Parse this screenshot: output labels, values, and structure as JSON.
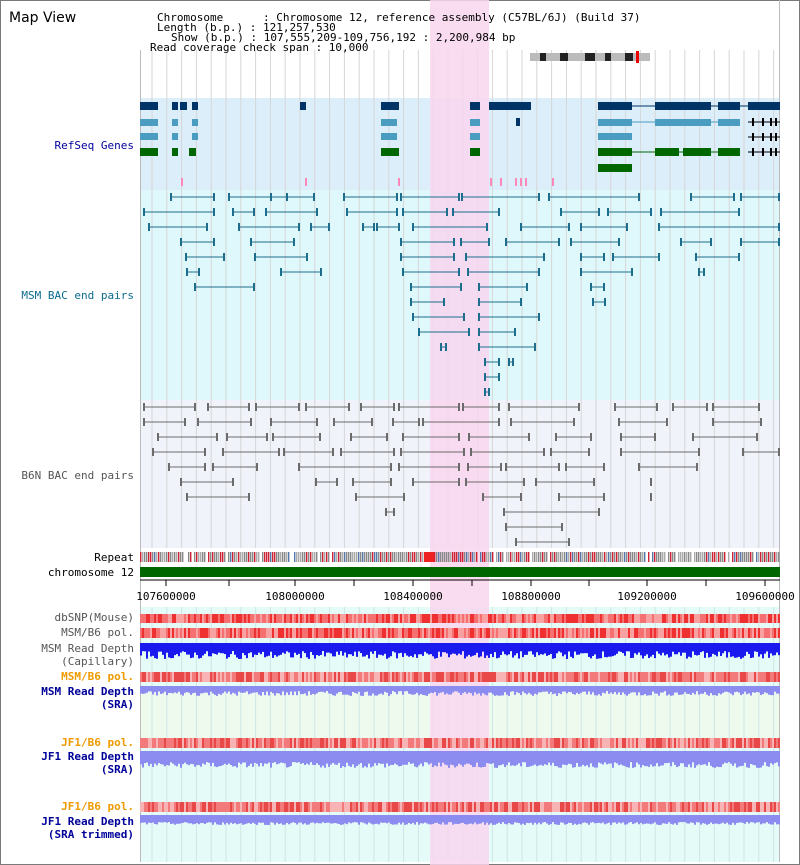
{
  "title": "Map View",
  "info": {
    "chromosome": "Chromosome      : Chromosome 12, reference assembly (C57BL/6J) (Build 37)",
    "length": "Length (b.p.) : 121,257,530",
    "show": "Show (b.p.) : 107,555,209-109,756,192 : 2,200,984 bp",
    "coverage": "Read coverage check span : 10,000"
  },
  "tracks": {
    "refseq": "RefSeq Genes",
    "msm_bac": "MSM BAC end pairs",
    "b6n_bac": "B6N BAC end pairs",
    "repeat": "Repeat",
    "chromosome": "chromosome 12",
    "dbsnp": "dbSNP(Mouse)",
    "msm_b6_pol": "MSM/B6 pol.",
    "msm_depth_cap_1": "MSM Read Depth",
    "msm_depth_cap_2": "(Capillary)",
    "msm_b6_pol_sra": "MSM/B6 pol.",
    "msm_depth_sra_1": "MSM Read Depth",
    "msm_depth_sra_2": "(SRA)",
    "jf1_b6_pol": "JF1/B6 pol.",
    "jf1_depth_1": "JF1 Read Depth",
    "jf1_depth_2": "(SRA)",
    "jf1_b6_pol_2": "JF1/B6 pol.",
    "jf1_trim_1": "JF1 Read Depth",
    "jf1_trim_2": "(SRA trimmed)"
  },
  "axis_ticks": [
    "107600000",
    "108000000",
    "108400000",
    "108800000",
    "109200000",
    "109600000"
  ],
  "colors": {
    "highlight": "#f9d6ee",
    "refseq_bg": "#ddeefb",
    "msm_bg": "#dff8fb",
    "b6n_bg": "#f1f3fa",
    "lower_bg": "#e4fbf7",
    "gene_navy": "#003366",
    "gene_teal": "#4a9cc0",
    "gene_green": "#006600",
    "msm_line": "#1d6e8c",
    "b6n_line": "#6b6b6b",
    "chrom_green": "#006600",
    "depth_blue": "#1a1aee",
    "depth_light": "#8c8cf0",
    "label_blue": "#000099",
    "label_orange": "#ee9a00",
    "label_teal": "#0b6b8e",
    "label_gray": "#555555"
  }
}
